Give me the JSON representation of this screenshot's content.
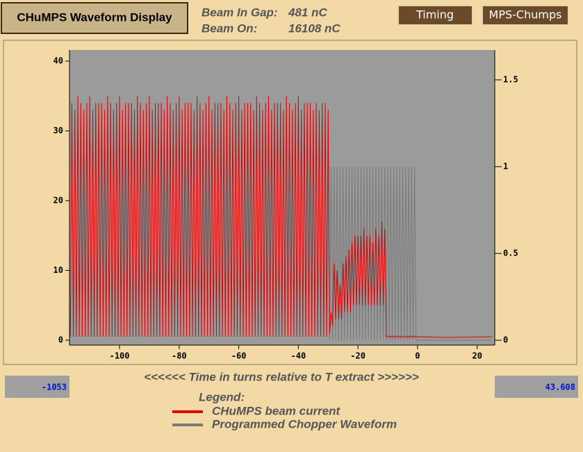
{
  "header": {
    "title": "CHuMPS Waveform Display",
    "beam_in_gap_label": "Beam In Gap:",
    "beam_in_gap_value": "481 nC",
    "beam_on_label": "Beam On:",
    "beam_on_value": "16108 nC"
  },
  "buttons": [
    "Timing",
    "MPS-Chumps"
  ],
  "readouts": {
    "left": "-1053",
    "right": "43.608"
  },
  "legend_title": "Legend:",
  "chart_data": {
    "type": "line",
    "x_label": "<<<<<< Time in turns relative to T extract >>>>>>",
    "xlim": [
      -116.8,
      25.9
    ],
    "xticks": [
      -100,
      -80,
      -60,
      -40,
      -20,
      0,
      20
    ],
    "ylim": [
      -0.7,
      41.6
    ],
    "yticks": [
      0,
      10,
      20,
      30,
      40
    ],
    "y2lim": [
      -0.028,
      1.672
    ],
    "y2ticks": [
      0,
      0.5,
      1,
      1.5
    ],
    "series": [
      {
        "name": "CHuMPS beam current",
        "color": "#e00000",
        "x": [
          -116.5,
          -116,
          -115.5,
          -115,
          -114.5,
          -114,
          -113.5,
          -113,
          -112.5,
          -112,
          -111.5,
          -111,
          -110.5,
          -110,
          -109.5,
          -109,
          -108.5,
          -108,
          -107.5,
          -107,
          -106.5,
          -106,
          -105.5,
          -105,
          -104.5,
          -104,
          -103.5,
          -103,
          -102.5,
          -102,
          -101.5,
          -101,
          -100.5,
          -100,
          -99.5,
          -99,
          -98.5,
          -98,
          -97.5,
          -97,
          -96.5,
          -96,
          -95.5,
          -95,
          -94.5,
          -94,
          -93.5,
          -93,
          -92.5,
          -92,
          -91.5,
          -91,
          -90.5,
          -90,
          -89.5,
          -89,
          -88.5,
          -88,
          -87.5,
          -87,
          -86.5,
          -86,
          -85.5,
          -85,
          -84.5,
          -84,
          -83.5,
          -83,
          -82.5,
          -82,
          -81.5,
          -81,
          -80.5,
          -80,
          -79.5,
          -79,
          -78.5,
          -78,
          -77.5,
          -77,
          -76.5,
          -76,
          -75.5,
          -75,
          -74.5,
          -74,
          -73.5,
          -73,
          -72.5,
          -72,
          -71.5,
          -71,
          -70.5,
          -70,
          -69.5,
          -69,
          -68.5,
          -68,
          -67.5,
          -67,
          -66.5,
          -66,
          -65.5,
          -65,
          -64.5,
          -64,
          -63.5,
          -63,
          -62.5,
          -62,
          -61.5,
          -61,
          -60.5,
          -60,
          -59.5,
          -59,
          -58.5,
          -58,
          -57.5,
          -57,
          -56.5,
          -56,
          -55.5,
          -55,
          -54.5,
          -54,
          -53.5,
          -53,
          -52.5,
          -52,
          -51.5,
          -51,
          -50.5,
          -50,
          -49.5,
          -49,
          -48.5,
          -48,
          -47.5,
          -47,
          -46.5,
          -46,
          -45.5,
          -45,
          -44.5,
          -44,
          -43.5,
          -43,
          -42.5,
          -42,
          -41.5,
          -41,
          -40.5,
          -40,
          -39.5,
          -39,
          -38.5,
          -38,
          -37.5,
          -37,
          -36.5,
          -36,
          -35.5,
          -35,
          -34.5,
          -34,
          -33.5,
          -33,
          -32.5,
          -32,
          -31.5,
          -31,
          -30.5,
          -30,
          -29.5,
          -29,
          -28.5,
          -28,
          -27.5,
          -27,
          -26.5,
          -26,
          -25.5,
          -25,
          -24.5,
          -24,
          -23.5,
          -23,
          -22.5,
          -22,
          -21.5,
          -21,
          -20.5,
          -20,
          -19.5,
          -19,
          -18.5,
          -18,
          -17.5,
          -17,
          -16.5,
          -16,
          -15.5,
          -15,
          -14.5,
          -14,
          -13.5,
          -13,
          -12.5,
          -12,
          -11.5,
          -11,
          -10.5,
          -10,
          -9.5,
          -9,
          -8.5,
          -8,
          -7.5,
          -7,
          -6.5,
          -6,
          -5.5,
          -5,
          -4.5,
          -4,
          -3.5,
          -3,
          -2.5,
          -2,
          -1.5,
          -1,
          -0.5,
          0,
          10,
          25
        ],
        "values": [
          0.5,
          34,
          0.5,
          33,
          0.5,
          35,
          0.5,
          34,
          0.5,
          33,
          0.5,
          34,
          0.5,
          35,
          0.5,
          33,
          0.5,
          34,
          0.5,
          34,
          0.5,
          34,
          0.5,
          33,
          0.5,
          35,
          0.5,
          34,
          0.5,
          33,
          0.5,
          34,
          0.5,
          35,
          0.5,
          33,
          0.5,
          34,
          0.5,
          34,
          0.5,
          34,
          0.5,
          33,
          0.5,
          35,
          0.5,
          34,
          0.5,
          33,
          0.5,
          34,
          0.5,
          35,
          0.5,
          33,
          0.5,
          34,
          0.5,
          34,
          0.5,
          34,
          0.5,
          33,
          0.5,
          35,
          0.5,
          34,
          0.5,
          33,
          0.5,
          34,
          0.5,
          35,
          0.5,
          33,
          0.5,
          34,
          0.5,
          34,
          0.5,
          34,
          0.5,
          33,
          0.5,
          35,
          0.5,
          34,
          0.5,
          33,
          0.5,
          34,
          0.5,
          35,
          0.5,
          33,
          0.5,
          34,
          0.5,
          34,
          0.5,
          34,
          0.5,
          33,
          0.5,
          35,
          0.5,
          34,
          0.5,
          33,
          0.5,
          34,
          0.5,
          35,
          0.5,
          33,
          0.5,
          34,
          0.5,
          34,
          0.5,
          34,
          0.5,
          33,
          0.5,
          35,
          0.5,
          34,
          0.5,
          33,
          0.5,
          34,
          0.5,
          35,
          0.5,
          33,
          0.5,
          34,
          0.5,
          34,
          0.5,
          34,
          0.5,
          33,
          0.5,
          35,
          0.5,
          34,
          0.5,
          33,
          0.5,
          34,
          0.5,
          35,
          0.5,
          33,
          0.5,
          34,
          0.5,
          34,
          0.5,
          34,
          0.5,
          33,
          0.5,
          34,
          0.5,
          33,
          0.5,
          34,
          0.5,
          34,
          0.5,
          33,
          1,
          4,
          2,
          11,
          3,
          10,
          3,
          8,
          3,
          11,
          4,
          12,
          4,
          13,
          4,
          14,
          5,
          15,
          5,
          15,
          5,
          15,
          5,
          16,
          5,
          15,
          5,
          15,
          5,
          14,
          5,
          16,
          5,
          15,
          5,
          17,
          5,
          16,
          0.5,
          0.6,
          0.4,
          0.6,
          0.4,
          0.6,
          0.4,
          0.6,
          0.4,
          0.6,
          0.4,
          0.6,
          0.4,
          0.6,
          0.4,
          0.6,
          0.4,
          0.6,
          0.4,
          0.6,
          0.4,
          0.5,
          0.4,
          0.5
        ]
      },
      {
        "name": "Programmed Chopper Waveform",
        "color": "#7a7a7a",
        "axis": "y2",
        "x": [
          -30,
          -29.5,
          -29,
          -28.5,
          -28,
          -27.5,
          -27,
          -26.5,
          -26,
          -25.5,
          -25,
          -24.5,
          -24,
          -23.5,
          -23,
          -22.5,
          -22,
          -21.5,
          -21,
          -20.5,
          -20,
          -19.5,
          -19,
          -18.5,
          -18,
          -17.5,
          -17,
          -16.5,
          -16,
          -15.5,
          -15,
          -14.5,
          -14,
          -13.5,
          -13,
          -12.5,
          -12,
          -11.5,
          -11,
          -10.5,
          -10,
          -9.5,
          -9,
          -8.5,
          -8,
          -7.5,
          -7,
          -6.5,
          -6,
          -5.5,
          -5,
          -4.5,
          -4,
          -3.5,
          -3,
          -2.5,
          -2,
          -1.5,
          -1,
          -0.5,
          0,
          10,
          25
        ],
        "values": [
          1,
          0,
          1,
          0,
          1,
          0,
          1,
          0,
          1,
          0,
          1,
          0,
          1,
          0,
          1,
          0,
          1,
          0,
          1,
          0,
          1,
          0,
          1,
          0,
          1,
          0,
          1,
          0,
          1,
          0,
          1,
          0,
          1,
          0,
          1,
          0,
          1,
          0,
          1,
          0,
          1,
          0,
          1,
          0,
          1,
          0,
          1,
          0,
          1,
          0,
          1,
          0,
          1,
          0,
          1,
          0,
          1,
          0,
          1,
          0,
          0,
          0,
          0
        ]
      }
    ]
  }
}
